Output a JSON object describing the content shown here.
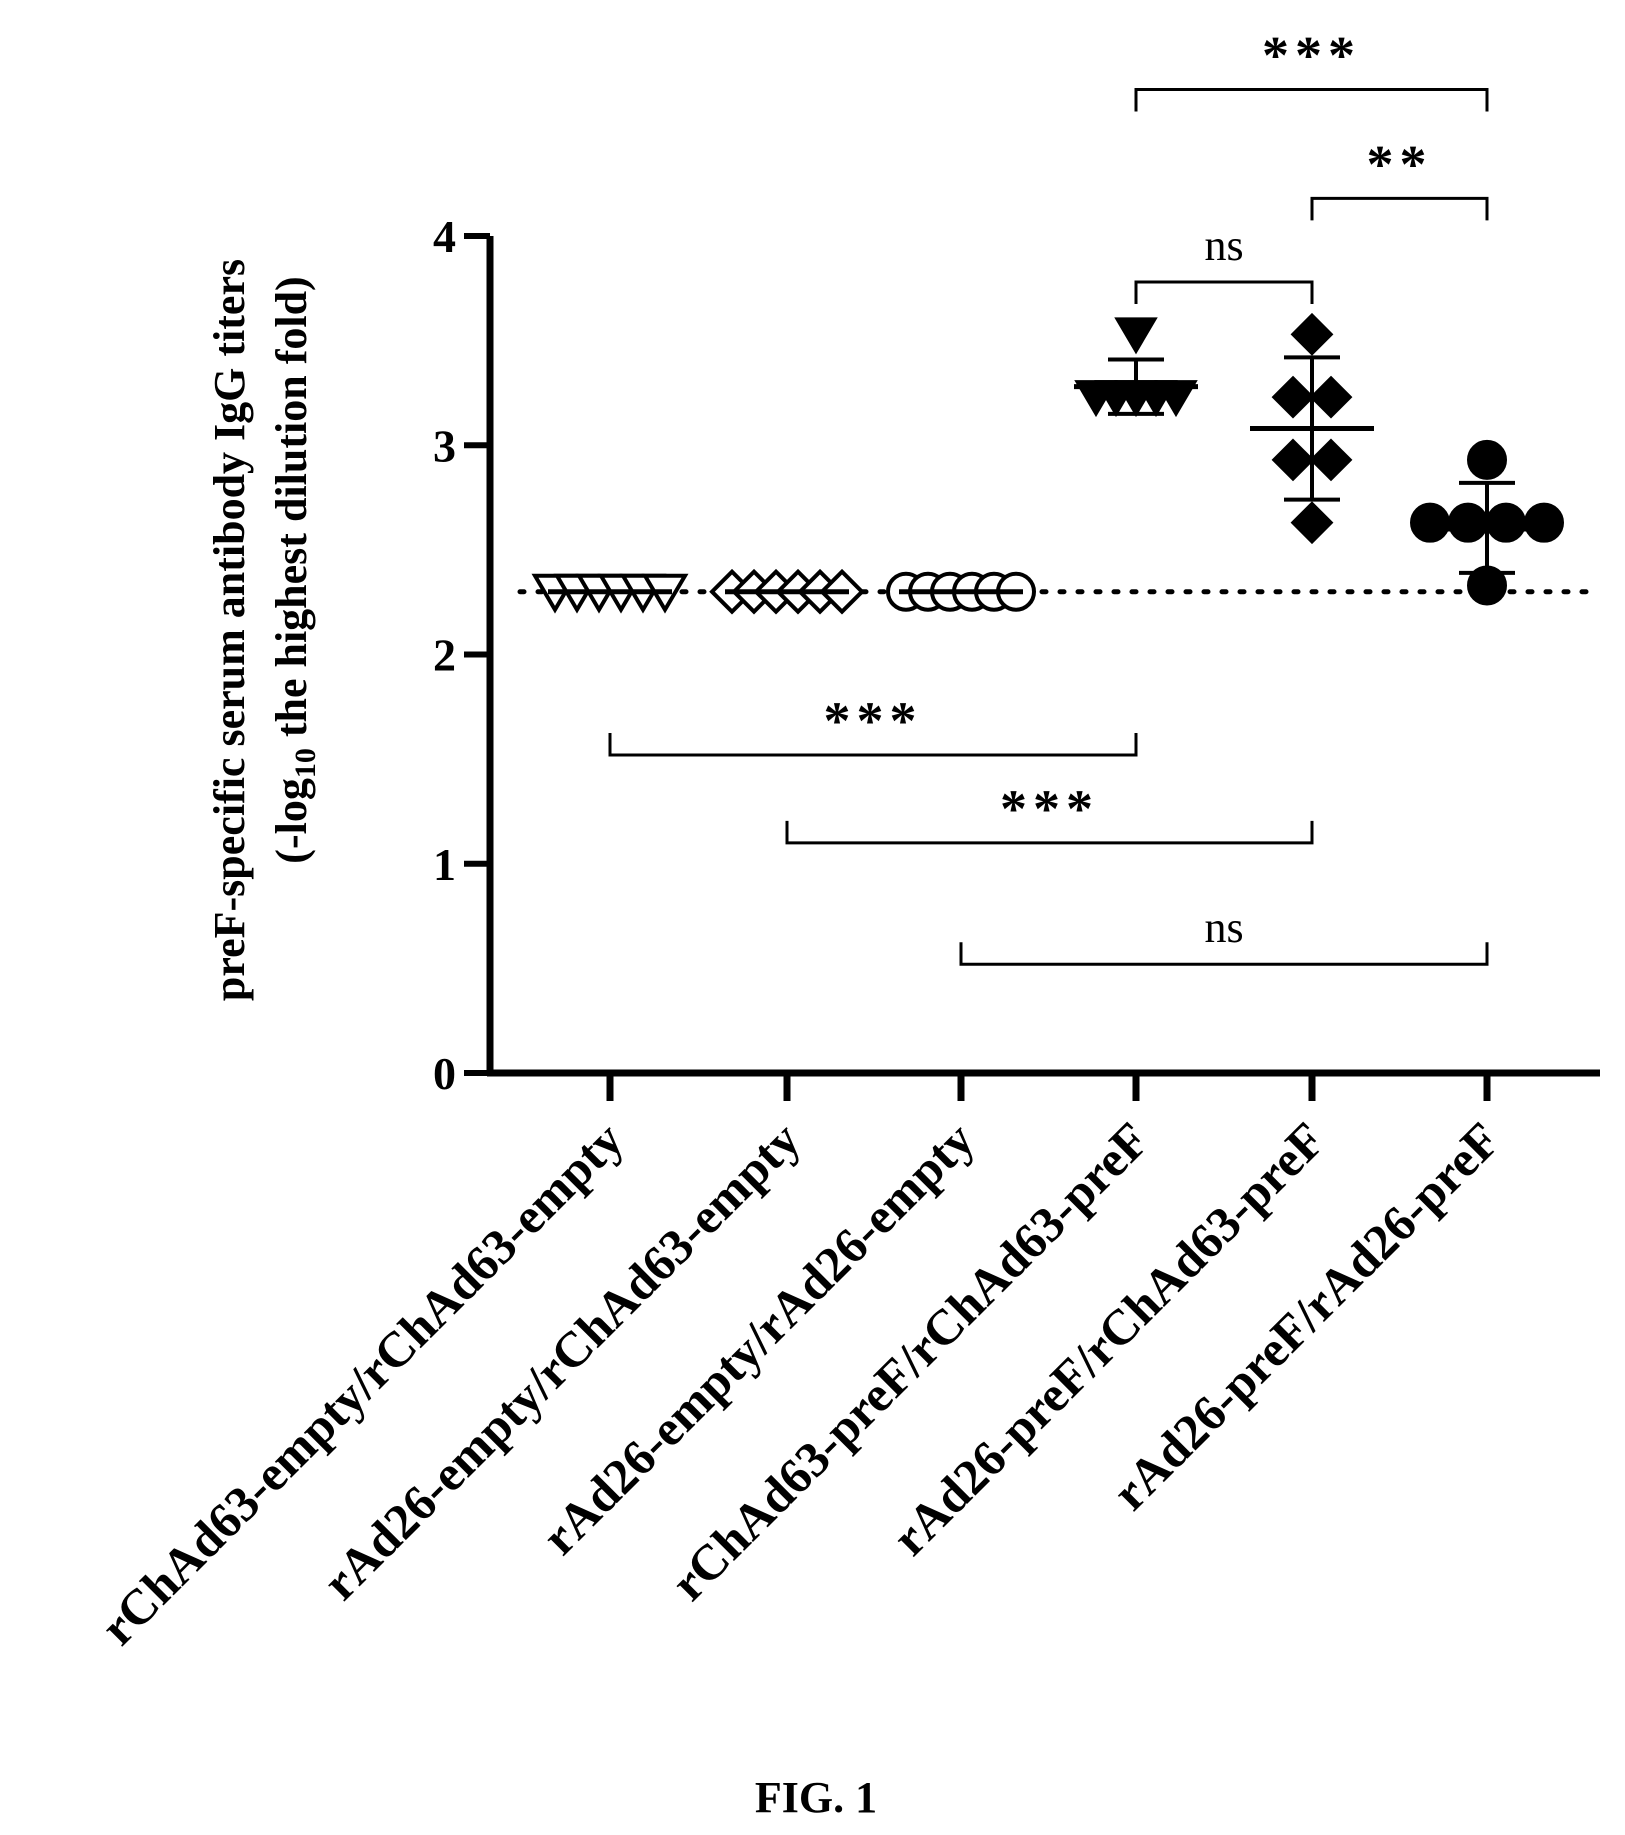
{
  "figure_caption": "FIG. 1",
  "chart_data": {
    "type": "scatter",
    "ylabel_line1": "preF-specific serum  antibody IgG titers",
    "ylabel_line2_prefix": "(-log",
    "ylabel_line2_sub": "10",
    "ylabel_line2_suffix": " the highest dilution fold)",
    "ylim": [
      0,
      4
    ],
    "yticks": [
      "0",
      "1",
      "2",
      "3",
      "4"
    ],
    "categories": [
      "rChAd63-empty/rChAd63-empty",
      "rAd26-empty/rChAd63-empty",
      "rAd26-empty/rAd26-empty",
      "rChAd63-preF/rChAd63-preF",
      "rAd26-preF/rChAd63-preF",
      "rAd26-preF/rAd26-preF"
    ],
    "detection_limit": 2.3,
    "series": [
      {
        "marker": "triangle-open",
        "values": [
          2.3,
          2.3,
          2.3,
          2.3,
          2.3,
          2.3
        ],
        "mean": 2.3
      },
      {
        "marker": "diamond-open",
        "values": [
          2.3,
          2.3,
          2.3,
          2.3,
          2.3,
          2.3
        ],
        "mean": 2.3
      },
      {
        "marker": "circle-open",
        "values": [
          2.3,
          2.3,
          2.3,
          2.3,
          2.3,
          2.3
        ],
        "mean": 2.3
      },
      {
        "marker": "triangle-filled",
        "values": [
          3.53,
          3.23,
          3.23,
          3.23,
          3.23,
          3.23
        ],
        "mean": 3.28,
        "sd": [
          3.15,
          3.41
        ]
      },
      {
        "marker": "diamond-filled",
        "values": [
          3.53,
          3.23,
          3.23,
          2.93,
          2.93,
          2.63
        ],
        "mean": 3.08,
        "sd": [
          2.74,
          3.42
        ]
      },
      {
        "marker": "circle-filled",
        "values": [
          2.93,
          2.63,
          2.63,
          2.63,
          2.63,
          2.33
        ],
        "mean": 2.6,
        "sd": [
          2.39,
          2.82
        ]
      }
    ],
    "comparisons": [
      {
        "from": 3,
        "to": 5,
        "label": "***",
        "y": 4.7,
        "down": true
      },
      {
        "from": 4,
        "to": 5,
        "label": "**",
        "y": 4.18,
        "down": true
      },
      {
        "from": 3,
        "to": 4,
        "label": "ns",
        "y": 3.78,
        "down": true
      },
      {
        "from": 0,
        "to": 3,
        "label": "***",
        "y": 1.52,
        "down": false
      },
      {
        "from": 1,
        "to": 4,
        "label": "***",
        "y": 1.1,
        "down": false
      },
      {
        "from": 2,
        "to": 5,
        "label": "ns",
        "y": 0.52,
        "down": false
      }
    ]
  }
}
